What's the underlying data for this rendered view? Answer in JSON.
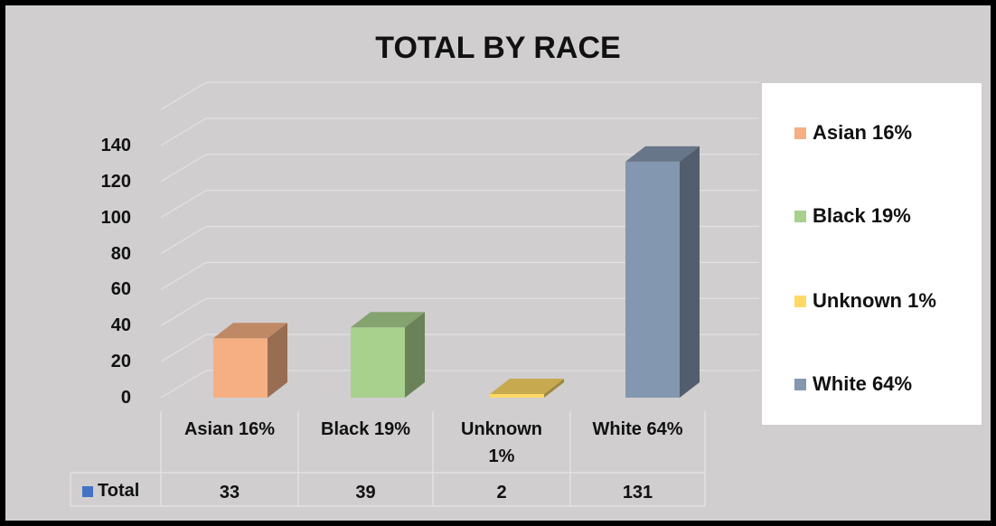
{
  "chart_data": {
    "type": "bar",
    "title": "TOTAL BY RACE",
    "categories": [
      "Asian 16%",
      "Black 19%",
      "Unknown 1%",
      "White 64%"
    ],
    "series": [
      {
        "name": "Total",
        "values": [
          33,
          39,
          2,
          131
        ]
      }
    ],
    "ylim": [
      0,
      140
    ],
    "yticks": [
      "0",
      "20",
      "40",
      "60",
      "80",
      "100",
      "120",
      "140"
    ],
    "colors": [
      "#f5af82",
      "#a9d18e",
      "#ffd966",
      "#8497b0"
    ],
    "legend": {
      "placement": "right",
      "items": [
        "Asian 16%",
        "Black 19%",
        "Unknown 1%",
        "White 64%"
      ]
    },
    "data_table": {
      "row_label": "Total",
      "row_key_color": "#4472c4",
      "values": [
        "33",
        "39",
        "2",
        "131"
      ]
    },
    "grid": true,
    "style": "3d-column"
  }
}
